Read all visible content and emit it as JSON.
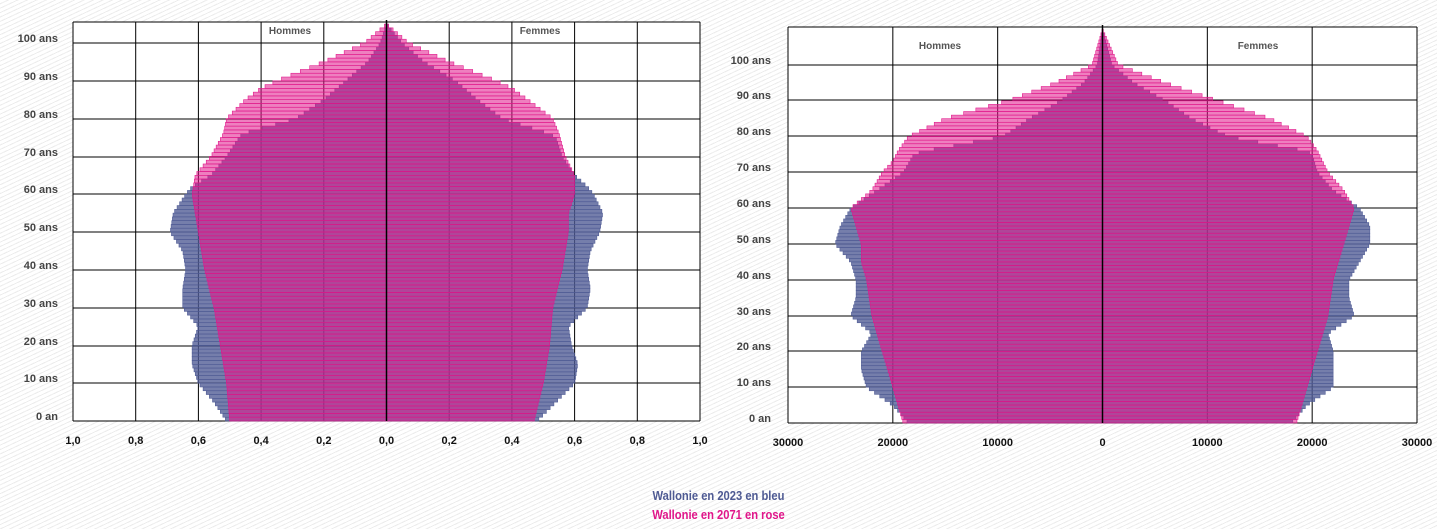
{
  "chart_data": [
    {
      "type": "bar",
      "orientation": "horizontal",
      "subtype": "population-pyramid",
      "group_labels": [
        "Hommes",
        "Femmes"
      ],
      "age_ticks": [
        "0 an",
        "10 ans",
        "20 ans",
        "30 ans",
        "40 ans",
        "50 ans",
        "60 ans",
        "70 ans",
        "80 ans",
        "90 ans",
        "100 ans"
      ],
      "x_tick_labels": [
        "1,0",
        "0,8",
        "0,6",
        "0,4",
        "0,2",
        "0,0",
        "0,2",
        "0,4",
        "0,6",
        "0,8",
        "1,0"
      ],
      "xlim": [
        -1.0,
        1.0
      ],
      "age_range": [
        0,
        105
      ],
      "grid": true,
      "series": [
        {
          "color": "#4e5a93",
          "age_points": [
            0,
            5,
            10,
            15,
            20,
            25,
            30,
            35,
            40,
            45,
            50,
            55,
            60,
            62,
            65,
            70,
            75,
            76,
            80,
            85,
            90,
            95,
            100,
            105
          ],
          "hommes": [
            0.51,
            0.55,
            0.6,
            0.62,
            0.62,
            0.6,
            0.65,
            0.65,
            0.64,
            0.65,
            0.69,
            0.68,
            0.64,
            0.62,
            0.56,
            0.51,
            0.47,
            0.46,
            0.29,
            0.2,
            0.13,
            0.06,
            0.02,
            0.0
          ],
          "femmes": [
            0.48,
            0.54,
            0.6,
            0.61,
            0.59,
            0.58,
            0.64,
            0.65,
            0.64,
            0.65,
            0.68,
            0.69,
            0.66,
            0.64,
            0.6,
            0.56,
            0.54,
            0.52,
            0.37,
            0.29,
            0.22,
            0.12,
            0.05,
            0.0
          ]
        },
        {
          "color": "#e0168a",
          "age_points": [
            0,
            10,
            20,
            30,
            40,
            50,
            55,
            60,
            65,
            70,
            73,
            76,
            80,
            85,
            88,
            90,
            95,
            100,
            105
          ],
          "hommes": [
            0.5,
            0.51,
            0.53,
            0.55,
            0.58,
            0.6,
            0.61,
            0.62,
            0.61,
            0.56,
            0.54,
            0.52,
            0.51,
            0.45,
            0.4,
            0.35,
            0.2,
            0.07,
            0.0
          ],
          "femmes": [
            0.47,
            0.5,
            0.52,
            0.53,
            0.56,
            0.58,
            0.58,
            0.6,
            0.6,
            0.57,
            0.56,
            0.55,
            0.53,
            0.45,
            0.4,
            0.35,
            0.2,
            0.07,
            0.0
          ]
        }
      ]
    },
    {
      "type": "bar",
      "orientation": "horizontal",
      "subtype": "population-pyramid",
      "group_labels": [
        "Hommes",
        "Femmes"
      ],
      "age_ticks": [
        "0 an",
        "10 ans",
        "20 ans",
        "30 ans",
        "40 ans",
        "50 ans",
        "60 ans",
        "70 ans",
        "80 ans",
        "90 ans",
        "100 ans"
      ],
      "x_tick_labels": [
        "30000",
        "20000",
        "10000",
        "0",
        "10000",
        "20000",
        "30000"
      ],
      "xlim": [
        -30000,
        30000
      ],
      "age_range": [
        0,
        110
      ],
      "grid": true,
      "series": [
        {
          "color": "#4e5a93",
          "age_points": [
            0,
            5,
            10,
            15,
            20,
            25,
            30,
            35,
            40,
            45,
            50,
            55,
            60,
            62,
            65,
            70,
            75,
            76,
            80,
            85,
            90,
            95,
            100,
            110
          ],
          "hommes": [
            18500,
            20000,
            22500,
            23000,
            23000,
            22000,
            24000,
            23500,
            23500,
            24000,
            25500,
            25000,
            24000,
            23000,
            21500,
            19000,
            18000,
            17000,
            9500,
            7000,
            4000,
            1800,
            500,
            0
          ],
          "femmes": [
            18000,
            19500,
            22000,
            22000,
            22000,
            21500,
            24000,
            23500,
            23500,
            24500,
            25500,
            25500,
            24500,
            23500,
            22000,
            20500,
            20000,
            19500,
            12000,
            8500,
            6000,
            3000,
            900,
            0
          ]
        },
        {
          "color": "#e0168a",
          "age_points": [
            0,
            10,
            20,
            30,
            40,
            45,
            50,
            55,
            60,
            65,
            70,
            73,
            76,
            80,
            85,
            88,
            90,
            95,
            100,
            110
          ],
          "hommes": [
            19000,
            20000,
            21000,
            22000,
            22500,
            23000,
            23000,
            23500,
            24000,
            22000,
            21000,
            20000,
            19500,
            18500,
            15000,
            11500,
            9000,
            4500,
            1000,
            0
          ],
          "femmes": [
            18500,
            19500,
            20500,
            21500,
            22000,
            22500,
            23000,
            23500,
            24000,
            23000,
            21500,
            21000,
            20500,
            19500,
            16000,
            13000,
            11000,
            6000,
            1500,
            0
          ]
        }
      ]
    }
  ],
  "legend": {
    "line1": "Wallonie en 2023 en bleu",
    "line2": "Wallonie en 2071 en rose"
  }
}
